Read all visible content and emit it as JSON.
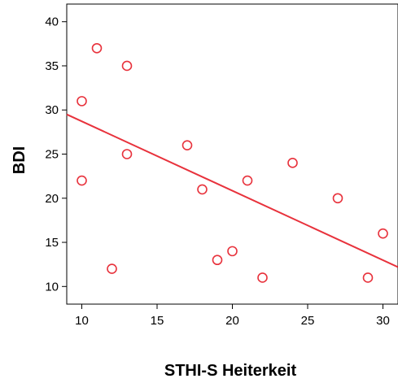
{
  "chart_data": {
    "type": "scatter",
    "title": "",
    "xlabel": "STHI-S Heiterkeit",
    "ylabel": "BDI",
    "xlim": [
      9,
      31
    ],
    "ylim": [
      8,
      42
    ],
    "x_ticks": [
      10,
      15,
      20,
      25,
      30
    ],
    "y_ticks": [
      10,
      15,
      20,
      25,
      30,
      35,
      40
    ],
    "grid": false,
    "marker_color": "#e8323c",
    "line_color": "#e8323c",
    "points": [
      {
        "x": 10,
        "y": 31
      },
      {
        "x": 10,
        "y": 22
      },
      {
        "x": 11,
        "y": 37
      },
      {
        "x": 12,
        "y": 12
      },
      {
        "x": 13,
        "y": 35
      },
      {
        "x": 13,
        "y": 25
      },
      {
        "x": 17,
        "y": 26
      },
      {
        "x": 18,
        "y": 21
      },
      {
        "x": 19,
        "y": 13
      },
      {
        "x": 20,
        "y": 14
      },
      {
        "x": 21,
        "y": 22
      },
      {
        "x": 22,
        "y": 11
      },
      {
        "x": 24,
        "y": 24
      },
      {
        "x": 27,
        "y": 20
      },
      {
        "x": 29,
        "y": 11
      },
      {
        "x": 30,
        "y": 16
      }
    ],
    "fit_line": {
      "x": [
        9,
        31
      ],
      "y": [
        29.5,
        12.2
      ]
    }
  }
}
